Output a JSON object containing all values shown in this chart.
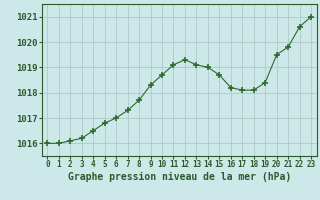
{
  "x": [
    0,
    1,
    2,
    3,
    4,
    5,
    6,
    7,
    8,
    9,
    10,
    11,
    12,
    13,
    14,
    15,
    16,
    17,
    18,
    19,
    20,
    21,
    22,
    23
  ],
  "y": [
    1016.0,
    1016.0,
    1016.1,
    1016.2,
    1016.5,
    1016.8,
    1017.0,
    1017.3,
    1017.7,
    1018.3,
    1018.7,
    1019.1,
    1019.3,
    1019.1,
    1019.0,
    1018.7,
    1018.2,
    1018.1,
    1018.1,
    1018.4,
    1019.5,
    1019.8,
    1020.6,
    1021.0
  ],
  "line_color": "#2d6a2d",
  "marker": "P",
  "marker_size": 3.0,
  "bg_color": "#cce8e8",
  "grid_color": "#b0c8c8",
  "ylim": [
    1015.5,
    1021.5
  ],
  "xlim": [
    -0.5,
    23.5
  ],
  "yticks": [
    1016,
    1017,
    1018,
    1019,
    1020,
    1021
  ],
  "xtick_labels": [
    "0",
    "1",
    "2",
    "3",
    "4",
    "5",
    "6",
    "7",
    "8",
    "9",
    "10",
    "11",
    "12",
    "13",
    "14",
    "15",
    "16",
    "17",
    "18",
    "19",
    "20",
    "21",
    "22",
    "23"
  ],
  "xlabel": "Graphe pression niveau de la mer (hPa)",
  "xlabel_color": "#2d5a2d",
  "tick_color": "#2d5a2d",
  "axis_color": "#2d5a2d",
  "label_fontsize": 6.5,
  "tick_fontsize": 5.5,
  "xlabel_fontsize": 7.0
}
